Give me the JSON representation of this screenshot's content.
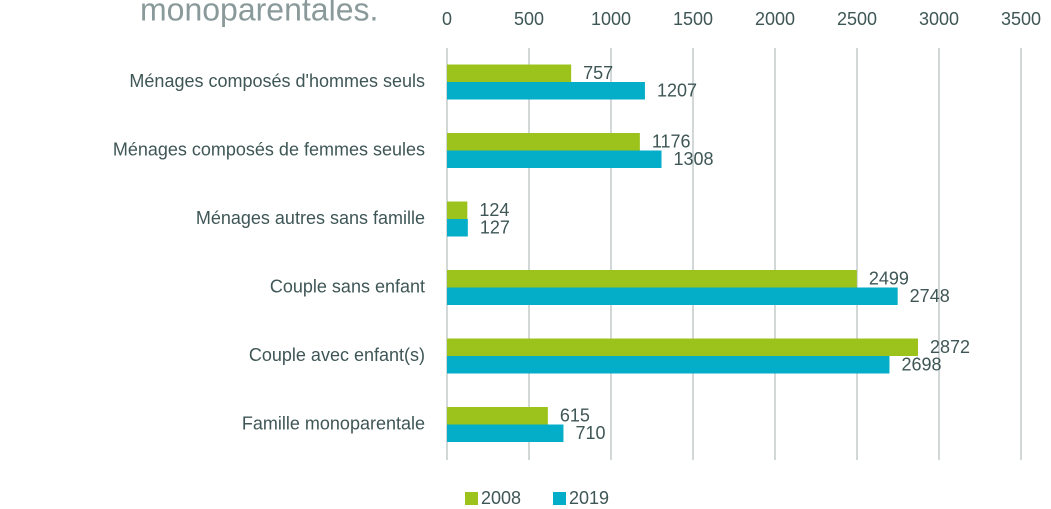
{
  "chart_data": {
    "type": "barh",
    "title": "monoparentales.",
    "categories": [
      "Ménages composés d'hommes seuls",
      "Ménages composés de femmes seules",
      "Ménages autres sans famille",
      "Couple sans enfant",
      "Couple avec enfant(s)",
      "Famille monoparentale"
    ],
    "series": [
      {
        "name": "2008",
        "color": "#9cc31c",
        "values": [
          757,
          1176,
          124,
          2499,
          2872,
          615
        ]
      },
      {
        "name": "2019",
        "color": "#05aec8",
        "values": [
          1207,
          1308,
          127,
          2748,
          2698,
          710
        ]
      }
    ],
    "xlim": [
      0,
      3500
    ],
    "xticks": [
      0,
      500,
      1000,
      1500,
      2000,
      2500,
      3000,
      3500
    ],
    "grid": true,
    "legend": "bottom"
  }
}
